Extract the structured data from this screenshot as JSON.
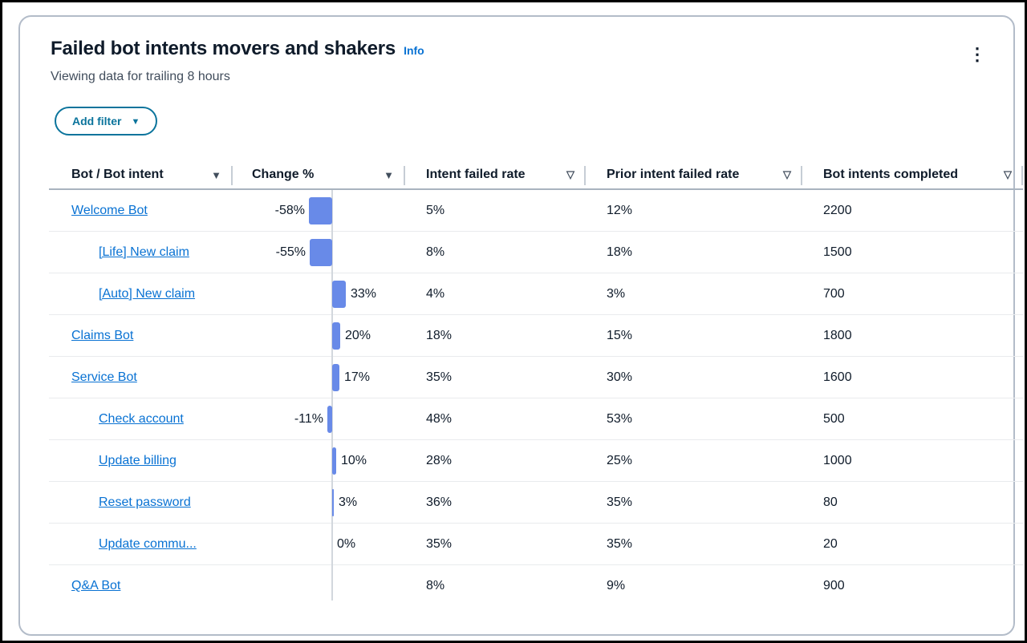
{
  "widget": {
    "title": "Failed bot intents movers and shakers",
    "info_label": "Info",
    "subtitle": "Viewing data for trailing 8 hours",
    "add_filter_label": "Add filter",
    "add_filter_caret": "▼",
    "menu_icon": "⋮"
  },
  "colors": {
    "bar": "#688ae8",
    "link": "#0972d3",
    "button": "#0b749c",
    "axis": "#d2d7dd"
  },
  "table": {
    "columns": [
      {
        "label": "Bot / Bot intent",
        "caret": "▼"
      },
      {
        "label": "Change %",
        "caret": "▼"
      },
      {
        "label": "Intent failed rate",
        "caret": "▽"
      },
      {
        "label": "Prior intent failed rate",
        "caret": "▽"
      },
      {
        "label": "Bot intents completed",
        "caret": "▽"
      }
    ],
    "rows": [
      {
        "name": "Welcome Bot",
        "level": "bot",
        "change": -58,
        "change_label": "-58%",
        "intent_failed_rate": "5%",
        "prior_intent_failed_rate": "12%",
        "bot_intents_completed": "2200"
      },
      {
        "name": "[Life] New claim",
        "level": "intent",
        "change": -55,
        "change_label": "-55%",
        "intent_failed_rate": "8%",
        "prior_intent_failed_rate": "18%",
        "bot_intents_completed": "1500"
      },
      {
        "name": "[Auto] New claim",
        "level": "intent",
        "change": 33,
        "change_label": "33%",
        "intent_failed_rate": "4%",
        "prior_intent_failed_rate": "3%",
        "bot_intents_completed": "700"
      },
      {
        "name": "Claims Bot",
        "level": "bot",
        "change": 20,
        "change_label": "20%",
        "intent_failed_rate": "18%",
        "prior_intent_failed_rate": "15%",
        "bot_intents_completed": "1800"
      },
      {
        "name": "Service Bot",
        "level": "bot",
        "change": 17,
        "change_label": "17%",
        "intent_failed_rate": "35%",
        "prior_intent_failed_rate": "30%",
        "bot_intents_completed": "1600"
      },
      {
        "name": "Check account",
        "level": "intent",
        "change": -11,
        "change_label": "-11%",
        "intent_failed_rate": "48%",
        "prior_intent_failed_rate": "53%",
        "bot_intents_completed": "500"
      },
      {
        "name": "Update billing",
        "level": "intent",
        "change": 10,
        "change_label": "10%",
        "intent_failed_rate": "28%",
        "prior_intent_failed_rate": "25%",
        "bot_intents_completed": "1000"
      },
      {
        "name": "Reset password",
        "level": "intent",
        "change": 3,
        "change_label": "3%",
        "intent_failed_rate": "36%",
        "prior_intent_failed_rate": "35%",
        "bot_intents_completed": "80"
      },
      {
        "name": "Update commu...",
        "level": "intent",
        "change": 0,
        "change_label": "0%",
        "intent_failed_rate": "35%",
        "prior_intent_failed_rate": "35%",
        "bot_intents_completed": "20"
      },
      {
        "name": "Q&A Bot",
        "level": "bot",
        "change": null,
        "change_label": null,
        "intent_failed_rate": "8%",
        "prior_intent_failed_rate": "9%",
        "bot_intents_completed": "900"
      }
    ]
  },
  "chart_data": {
    "type": "bar",
    "orientation": "horizontal-diverging",
    "title": "Change %",
    "categories": [
      "Welcome Bot",
      "[Life] New claim",
      "[Auto] New claim",
      "Claims Bot",
      "Service Bot",
      "Check account",
      "Update billing",
      "Reset password",
      "Update commu...",
      "Q&A Bot"
    ],
    "values": [
      -58,
      -55,
      33,
      20,
      17,
      -11,
      10,
      3,
      0,
      null
    ],
    "xlabel": "",
    "ylabel": "",
    "xlim": [
      -100,
      100
    ],
    "grid": false,
    "legend": false
  }
}
